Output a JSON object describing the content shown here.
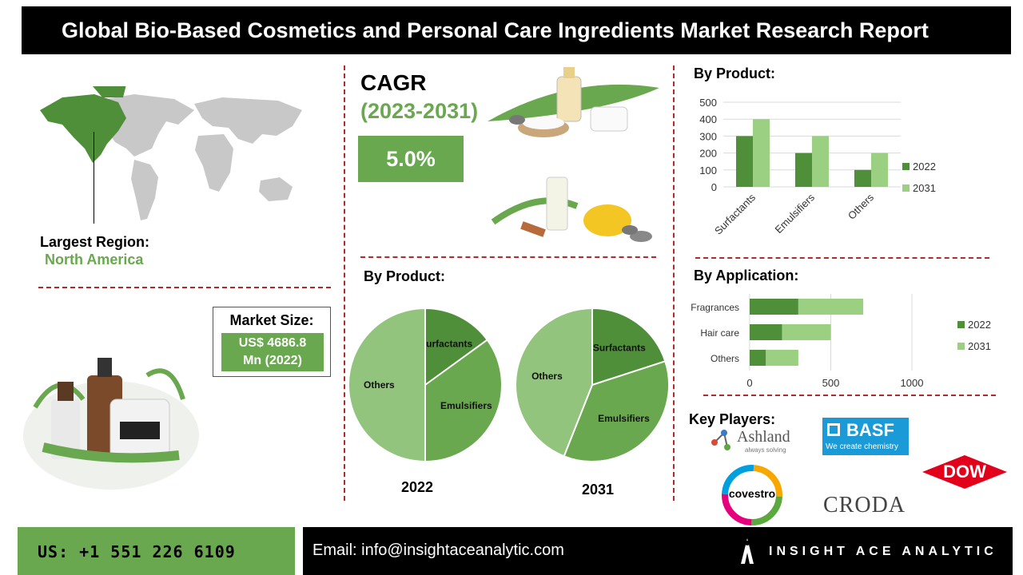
{
  "header": {
    "title": "Global Bio-Based Cosmetics and Personal Care Ingredients Market Research Report"
  },
  "region": {
    "label": "Largest Region:",
    "value": "North America"
  },
  "cagr": {
    "title": "CAGR",
    "period": "(2023-2031)",
    "value": "5.0%"
  },
  "market_size": {
    "title": "Market Size:",
    "line1": "US$ 4686.8",
    "line2": "Mn (2022)"
  },
  "pie_section": {
    "title": "By Product:",
    "year_left": "2022",
    "year_right": "2031"
  },
  "product_chart": {
    "title": "By Product:"
  },
  "application_chart": {
    "title": "By Application:"
  },
  "key_players": {
    "title": "Key Players:",
    "ashland": "Ashland",
    "ashland_tag": "always solving",
    "basf": "BASF",
    "basf_tag": "We create chemistry",
    "dow": "DOW",
    "covestro": "covestro",
    "croda": "CRODA"
  },
  "footer": {
    "phone": "US: +1 551 226 6109",
    "email": "Email: info@insightaceanalytic.com",
    "brand": "INSIGHT ACE ANALYTIC"
  },
  "colors": {
    "green": "#6aa84f",
    "dark_green": "#4f8f3a",
    "light_green": "#9bcf82",
    "header_bg": "#000000",
    "dash_red": "#b22a2a"
  },
  "chart_data": [
    {
      "type": "bar",
      "categories": [
        "Surfactants",
        "Emulsifiers",
        "Others"
      ],
      "series": [
        {
          "name": "2022",
          "values": [
            300,
            200,
            100
          ]
        },
        {
          "name": "2031",
          "values": [
            400,
            300,
            200
          ]
        }
      ],
      "ylim": [
        0,
        500
      ],
      "yticks": [
        "0",
        "100",
        "200",
        "300",
        "400",
        "500"
      ],
      "legend": "right",
      "grid": true
    },
    {
      "type": "bar",
      "orientation": "horizontal",
      "categories": [
        "Fragrances",
        "Hair care",
        "Others"
      ],
      "series": [
        {
          "name": "2022",
          "values": [
            300,
            200,
            100
          ]
        },
        {
          "name": "2031",
          "values": [
            400,
            300,
            200
          ]
        }
      ],
      "stacked": true,
      "xlim": [
        0,
        1000
      ],
      "xticks": [
        "0",
        "500",
        "1000"
      ],
      "legend": "right",
      "grid": true
    },
    {
      "type": "pie",
      "year": "2022",
      "labels": [
        "Surfactants",
        "Emulsifiers",
        "Others"
      ],
      "values": [
        15,
        35,
        50
      ]
    },
    {
      "type": "pie",
      "year": "2031",
      "labels": [
        "Surfactants",
        "Emulsifiers",
        "Others"
      ],
      "values": [
        20,
        36,
        44
      ]
    }
  ]
}
